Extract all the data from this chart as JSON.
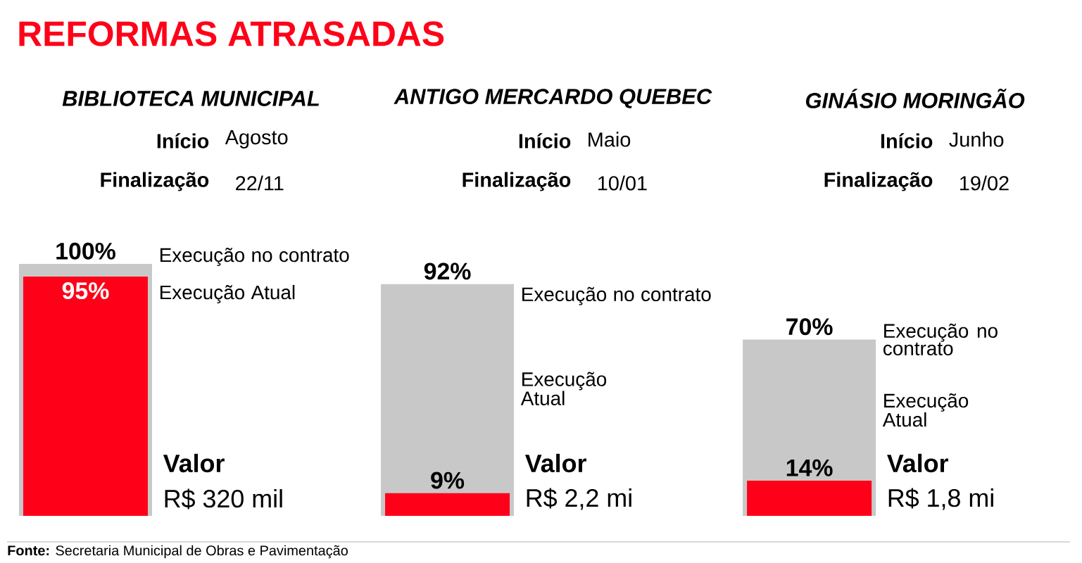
{
  "chart_data": {
    "type": "bar",
    "title": "REFORMAS ATRASADAS",
    "categories": [
      "BIBLIOTECA MUNICIPAL",
      "ANTIGO MERCARDO QUEBEC",
      "GINÁSIO MORINGÃO"
    ],
    "series": [
      {
        "name": "Execução no contrato",
        "color": "#c8c8c8",
        "values": [
          100,
          92,
          70
        ],
        "value_labels": [
          "100%",
          "92%",
          "70%"
        ]
      },
      {
        "name": "Execução Atual",
        "color": "#ff0019",
        "values": [
          95,
          9,
          14
        ],
        "value_labels": [
          "95%",
          "9%",
          "14%"
        ]
      }
    ],
    "ylim": [
      0,
      100
    ],
    "annotations": [
      "Início",
      "Agosto",
      "Finalização",
      "22/11",
      "Valor",
      "R$ 320 mil",
      "Início",
      "Maio",
      "Finalização",
      "10/01",
      "Valor",
      "R$ 2,2 mi",
      "Início",
      "Junho",
      "Finalização",
      "19/02",
      "Valor",
      "R$ 1,8 mi",
      "**Fonte:** Secretaria Municipal de Obras e Pavimentação"
    ]
  }
}
